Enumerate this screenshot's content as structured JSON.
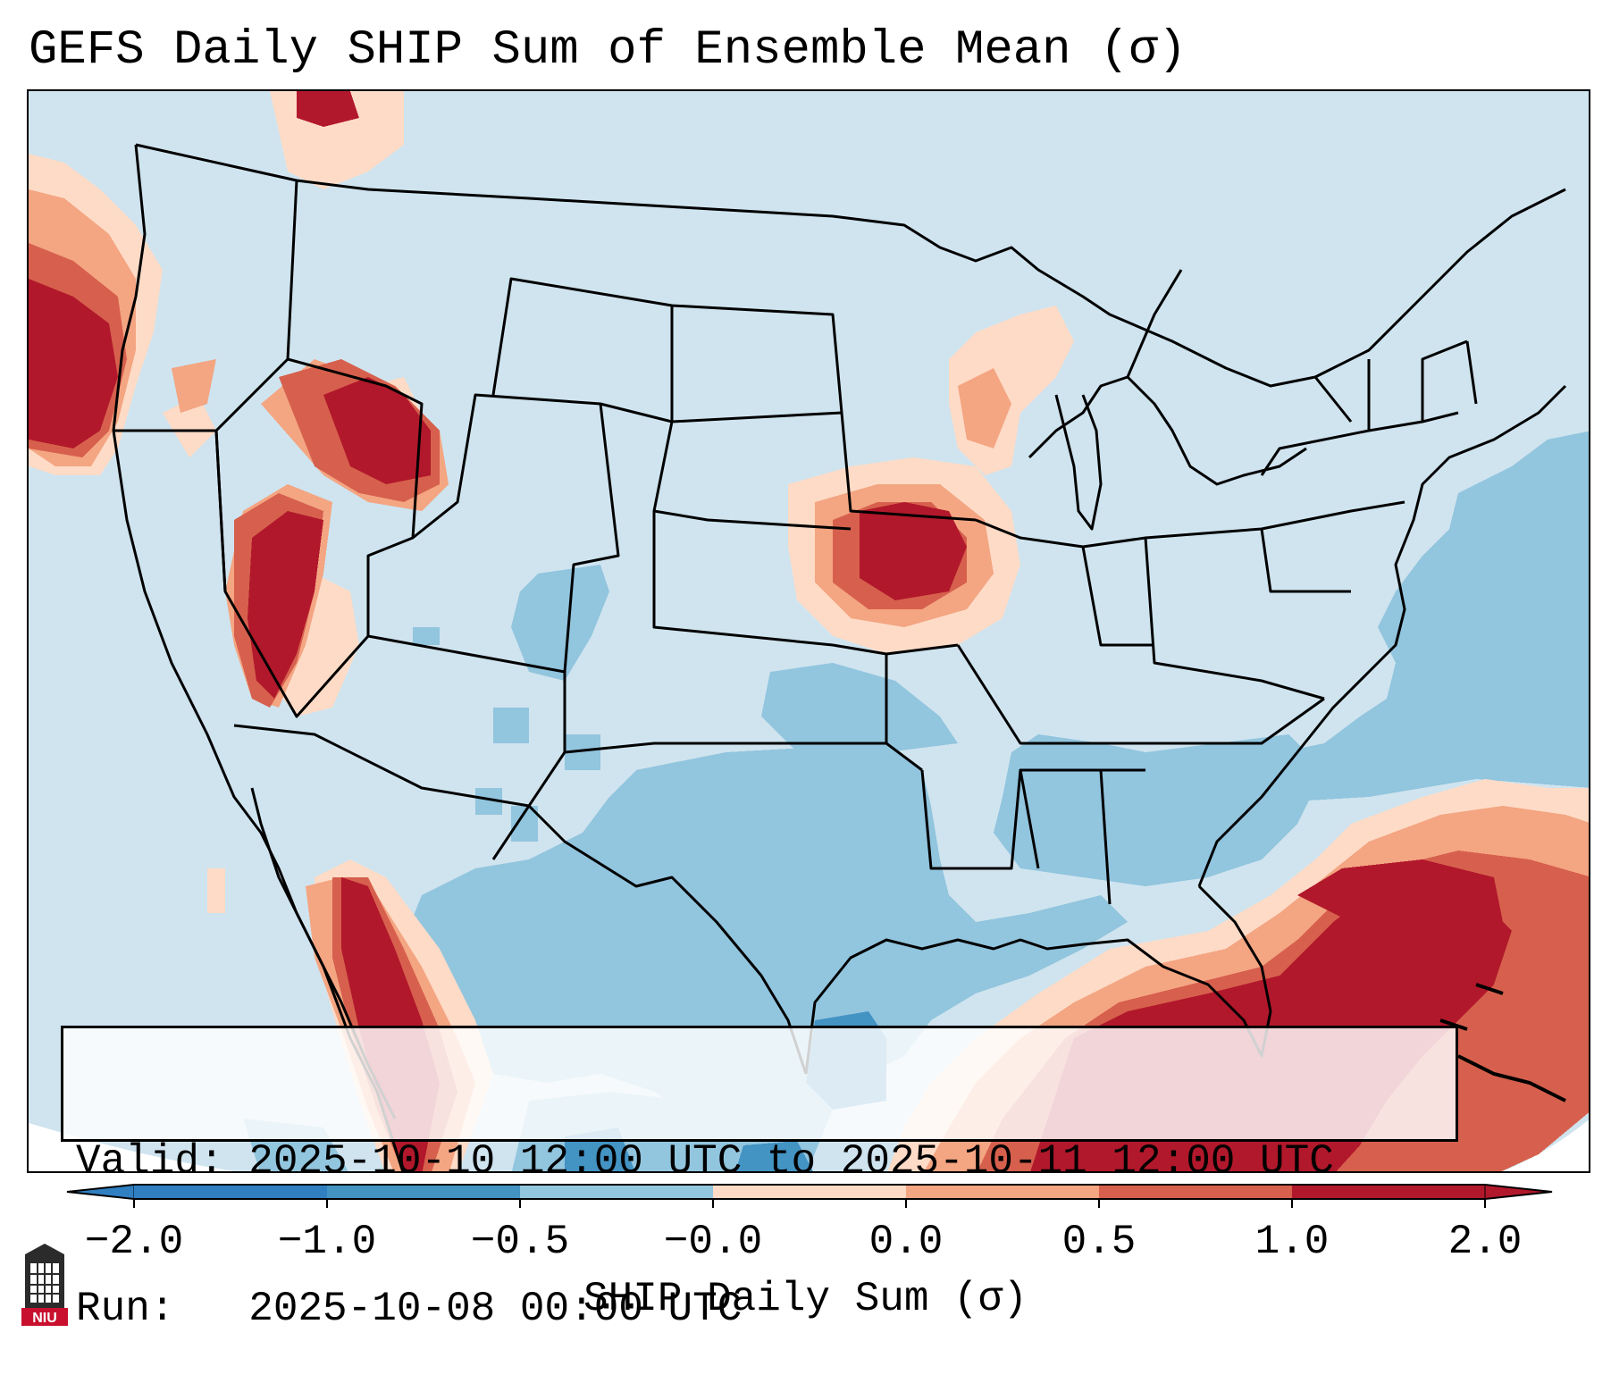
{
  "title": "GEFS Daily SHIP Sum of Ensemble Mean (σ)",
  "info": {
    "valid_line": "Valid: 2025-10-10 12:00 UTC to 2025-10-11 12:00 UTC",
    "run_line": "Run:   2025-10-08 00:00 UTC"
  },
  "colorbar": {
    "label": "SHIP Daily Sum (σ)",
    "ticks": [
      "−2.0",
      "−1.0",
      "−0.5",
      "−0.0",
      "0.0",
      "0.5",
      "1.0",
      "2.0"
    ],
    "colors": [
      "#2f7fc1",
      "#4393c3",
      "#92c5de",
      "#d1e5f0",
      "#fddbc7",
      "#f4a582",
      "#d6604d",
      "#b2182b"
    ],
    "extend": "both"
  },
  "map": {
    "background_color": "#cfe4ef",
    "region": "Continental United States"
  },
  "logo": {
    "text": "NIU",
    "color": "#c8102e"
  }
}
